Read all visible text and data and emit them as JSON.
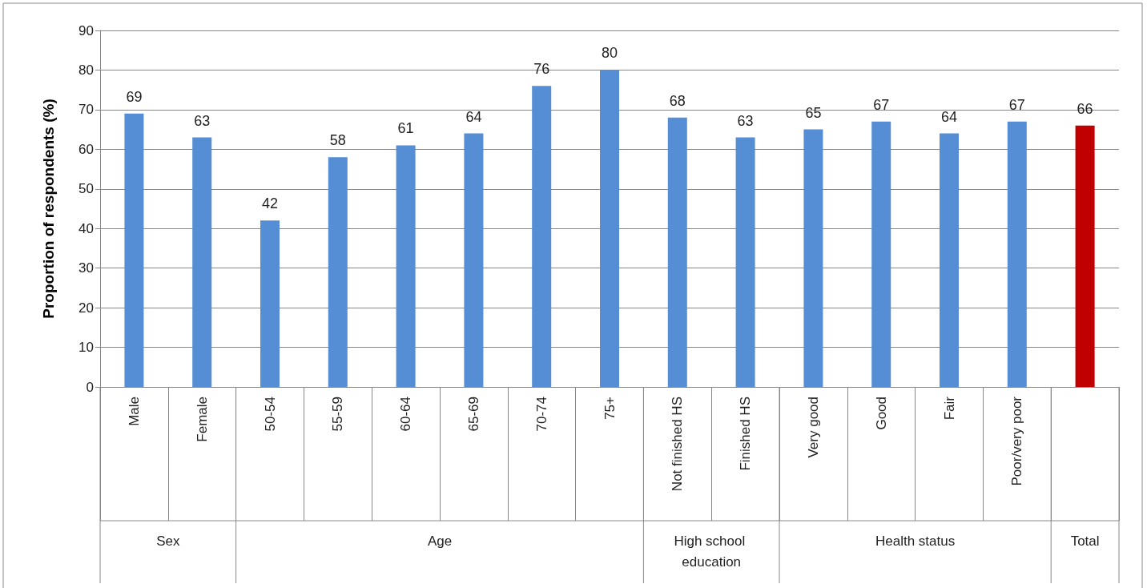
{
  "chart_data": {
    "type": "bar",
    "ylabel": "Proportion of respondents (%)",
    "categories": [
      "Male",
      "Female",
      "50-54",
      "55-59",
      "60-64",
      "65-69",
      "70-74",
      "75+",
      "Not finished HS",
      "Finished HS",
      "Very good",
      "Good",
      "Fair",
      "Poor/very poor",
      null
    ],
    "values": [
      69,
      63,
      42,
      58,
      61,
      64,
      76,
      80,
      68,
      63,
      65,
      67,
      64,
      67,
      66
    ],
    "colors": [
      "#558ed5",
      "#558ed5",
      "#558ed5",
      "#558ed5",
      "#558ed5",
      "#558ed5",
      "#558ed5",
      "#558ed5",
      "#558ed5",
      "#558ed5",
      "#558ed5",
      "#558ed5",
      "#558ed5",
      "#558ed5",
      "#c00000"
    ],
    "ylim": [
      0,
      90
    ],
    "yticks": [
      0,
      10,
      20,
      30,
      40,
      50,
      60,
      70,
      80,
      90
    ],
    "grid": "y",
    "data_labels": true,
    "annotations": [
      "Sex",
      "Age",
      "High school education",
      "Health status",
      "Total"
    ]
  }
}
